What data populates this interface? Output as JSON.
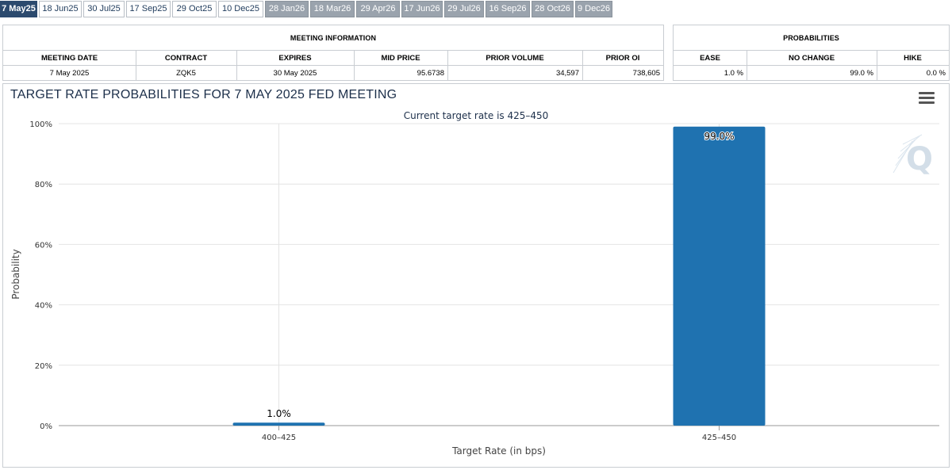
{
  "tabs": [
    {
      "label": "7 May25",
      "state": "active"
    },
    {
      "label": "18 Jun25",
      "state": "light"
    },
    {
      "label": "30 Jul25",
      "state": "light"
    },
    {
      "label": "17 Sep25",
      "state": "light"
    },
    {
      "label": "29 Oct25",
      "state": "light"
    },
    {
      "label": "10 Dec25",
      "state": "light"
    },
    {
      "label": "28 Jan26",
      "state": "dark"
    },
    {
      "label": "18 Mar26",
      "state": "dark"
    },
    {
      "label": "29 Apr26",
      "state": "dark"
    },
    {
      "label": "17 Jun26",
      "state": "dark"
    },
    {
      "label": "29 Jul26",
      "state": "dark"
    },
    {
      "label": "16 Sep26",
      "state": "dark"
    },
    {
      "label": "28 Oct26",
      "state": "dark"
    },
    {
      "label": "9 Dec26",
      "state": "dark"
    }
  ],
  "meeting_info": {
    "title": "MEETING INFORMATION",
    "headers": {
      "meeting_date": "MEETING DATE",
      "contract": "CONTRACT",
      "expires": "EXPIRES",
      "mid_price": "MID PRICE",
      "prior_volume": "PRIOR VOLUME",
      "prior_oi": "PRIOR OI"
    },
    "values": {
      "meeting_date": "7 May 2025",
      "contract": "ZQK5",
      "expires": "30 May 2025",
      "mid_price": "95.6738",
      "prior_volume": "34,597",
      "prior_oi": "738,605"
    }
  },
  "probabilities": {
    "title": "PROBABILITIES",
    "headers": {
      "ease": "EASE",
      "no_change": "NO CHANGE",
      "hike": "HIKE"
    },
    "values": {
      "ease": "1.0 %",
      "no_change": "99.0 %",
      "hike": "0.0 %"
    }
  },
  "chart": {
    "title": "TARGET RATE PROBABILITIES FOR 7 MAY 2025 FED MEETING",
    "watermark": "Q",
    "menu_icon": "hamburger-menu-icon"
  },
  "chart_data": {
    "type": "bar",
    "subtitle": "Current target rate is 425–450",
    "categories": [
      "400–425",
      "425–450"
    ],
    "values": [
      1.0,
      99.0
    ],
    "data_labels": [
      "1.0%",
      "99.0%"
    ],
    "xlabel": "Target Rate (in bps)",
    "ylabel": "Probability",
    "ylim": [
      0,
      100
    ],
    "yticks": [
      0,
      20,
      40,
      60,
      80,
      100
    ],
    "ytick_labels": [
      "0%",
      "20%",
      "40%",
      "60%",
      "80%",
      "100%"
    ],
    "grid": true,
    "bar_color": "#1f72b0"
  }
}
